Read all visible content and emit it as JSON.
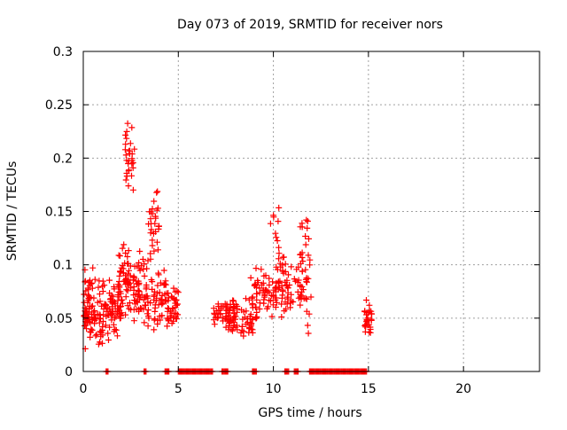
{
  "chart_data": {
    "type": "scatter",
    "title": "Day 073 of 2019, SRMTID for receiver nors",
    "xlabel": "GPS time / hours",
    "ylabel": "SRMTID / TECUs",
    "xlim": [
      0,
      24
    ],
    "ylim": [
      0,
      0.3
    ],
    "x_ticks": [
      0,
      5,
      10,
      15,
      20
    ],
    "x_tick_labels": [
      "0",
      "5",
      "10",
      "15",
      "20"
    ],
    "y_ticks": [
      0,
      0.05,
      0.1,
      0.15,
      0.2,
      0.25,
      0.3
    ],
    "y_tick_labels": [
      "0",
      "0.05",
      "0.1",
      "0.15",
      "0.2",
      "0.25",
      "0.3"
    ],
    "grid": true,
    "marker": "+",
    "marker_color": "#ff0000",
    "clusters": [
      {
        "x_range": [
          0.0,
          0.6
        ],
        "y_range": [
          0.02,
          0.1
        ],
        "count": 70
      },
      {
        "x_range": [
          0.6,
          1.5
        ],
        "y_range": [
          0.02,
          0.09
        ],
        "count": 60
      },
      {
        "x_range": [
          1.5,
          2.0
        ],
        "y_range": [
          0.03,
          0.09
        ],
        "count": 40
      },
      {
        "x_range": [
          1.8,
          2.5
        ],
        "y_range": [
          0.04,
          0.13
        ],
        "count": 55
      },
      {
        "x_range": [
          2.2,
          2.7
        ],
        "y_range": [
          0.15,
          0.25
        ],
        "count": 30
      },
      {
        "x_range": [
          2.6,
          3.4
        ],
        "y_range": [
          0.04,
          0.12
        ],
        "count": 60
      },
      {
        "x_range": [
          3.4,
          4.0
        ],
        "y_range": [
          0.1,
          0.18
        ],
        "count": 30
      },
      {
        "x_range": [
          3.4,
          4.5
        ],
        "y_range": [
          0.03,
          0.1
        ],
        "count": 60
      },
      {
        "x_range": [
          4.5,
          5.0
        ],
        "y_range": [
          0.04,
          0.085
        ],
        "count": 30
      },
      {
        "x_range": [
          6.8,
          8.0
        ],
        "y_range": [
          0.04,
          0.07
        ],
        "count": 40
      },
      {
        "x_range": [
          7.5,
          9.2
        ],
        "y_range": [
          0.03,
          0.07
        ],
        "count": 70
      },
      {
        "x_range": [
          8.8,
          10.2
        ],
        "y_range": [
          0.05,
          0.1
        ],
        "count": 60
      },
      {
        "x_range": [
          9.8,
          10.3
        ],
        "y_range": [
          0.12,
          0.16
        ],
        "count": 8
      },
      {
        "x_range": [
          10.2,
          11.5
        ],
        "y_range": [
          0.04,
          0.12
        ],
        "count": 60
      },
      {
        "x_range": [
          11.4,
          12.0
        ],
        "y_range": [
          0.03,
          0.15
        ],
        "count": 40
      },
      {
        "x_range": [
          14.8,
          15.2
        ],
        "y_range": [
          0.03,
          0.07
        ],
        "count": 30
      }
    ],
    "zero_points": [
      {
        "x_range": [
          1.2,
          1.3
        ]
      },
      {
        "x_range": [
          3.2,
          3.3
        ]
      },
      {
        "x_range": [
          4.3,
          4.5
        ]
      },
      {
        "x_range": [
          5.0,
          6.8
        ]
      },
      {
        "x_range": [
          7.3,
          7.6
        ]
      },
      {
        "x_range": [
          8.9,
          9.1
        ]
      },
      {
        "x_range": [
          10.6,
          10.8
        ]
      },
      {
        "x_range": [
          11.1,
          11.3
        ]
      },
      {
        "x_range": [
          11.9,
          14.9
        ]
      }
    ]
  }
}
